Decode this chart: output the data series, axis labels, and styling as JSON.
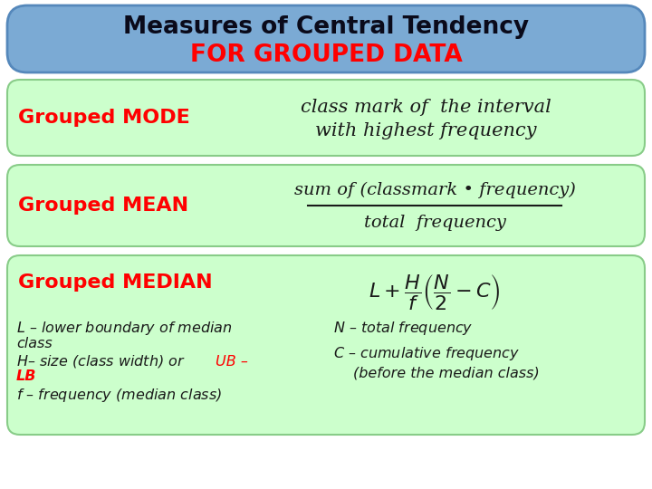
{
  "title_line1": "Measures of Central Tendency",
  "title_line2": "FOR GROUPED DATA",
  "title_bg_color": "#7baad4",
  "title_text_color1": "#0a0a1a",
  "title_text_color2": "#ff0000",
  "section_bg_color": "#ccffcc",
  "section_border_color": "#88cc88",
  "mode_label": "Grouped MODE",
  "mode_formula_line1": "class mark of  the interval",
  "mode_formula_line2": "with highest frequency",
  "mean_label": "Grouped MEAN",
  "mean_formula_num": "sum of (classmark • frequency)",
  "mean_formula_den": "total  frequency",
  "median_label": "Grouped MEDIAN",
  "label_color": "#ff0000",
  "formula_color": "#1a1a1a",
  "note_color": "#1a1a1a",
  "note_highlight_color": "#ff0000",
  "bg_color": "#ffffff"
}
